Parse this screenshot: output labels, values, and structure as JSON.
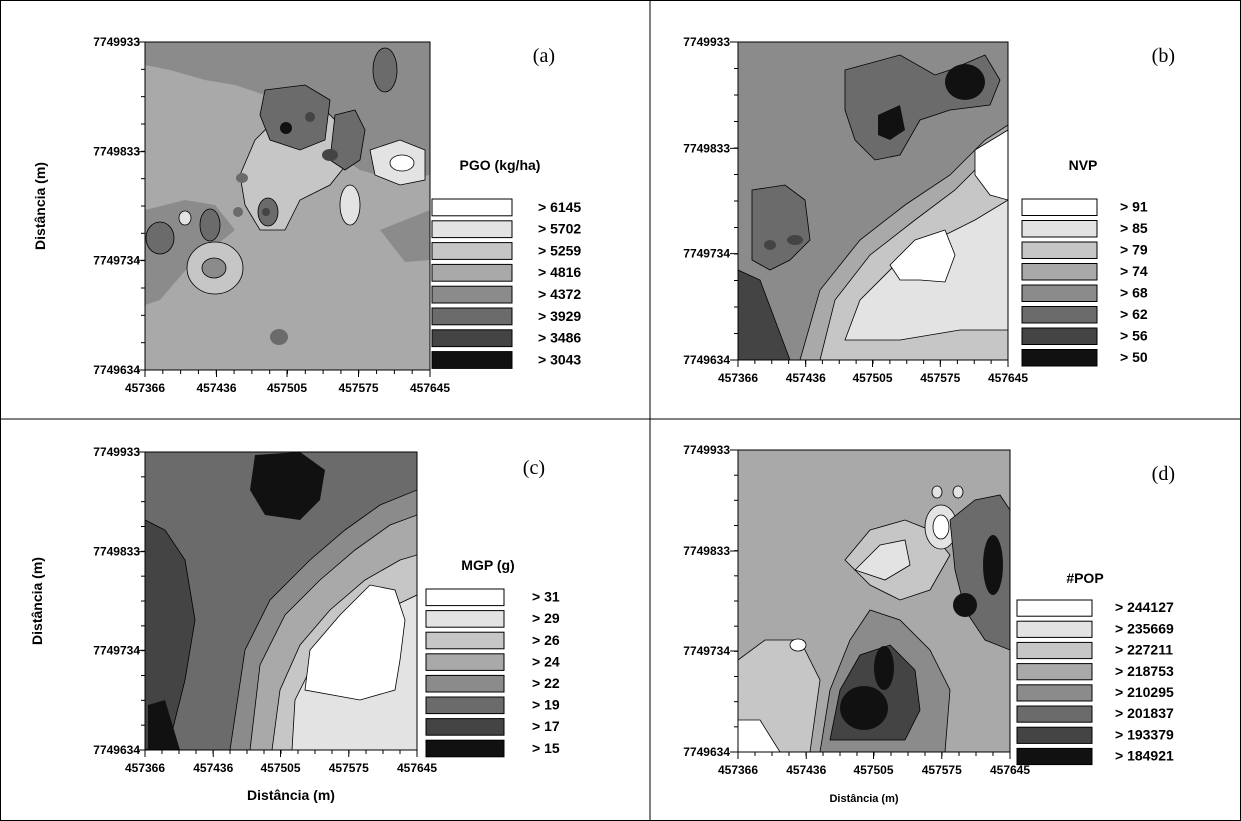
{
  "figure": {
    "panels": [
      {
        "label": "(a)",
        "legend_title": "PGO (kg/ha)",
        "y_ticks": [
          "7749933",
          "7749833",
          "7749734",
          "7749634"
        ],
        "x_ticks": [
          "457366",
          "457436",
          "457505",
          "457575",
          "457645"
        ],
        "ylabel": "Distância (m)",
        "xlabel": "",
        "legend_entries": [
          "> 6145",
          "> 5702",
          "> 5259",
          "> 4816",
          "> 4372",
          "> 3929",
          "> 3486",
          "> 3043"
        ]
      },
      {
        "label": "(b)",
        "legend_title": "NVP",
        "y_ticks": [
          "7749933",
          "7749833",
          "7749734",
          "7749634"
        ],
        "x_ticks": [
          "457366",
          "457436",
          "457505",
          "457575",
          "457645"
        ],
        "ylabel": "",
        "xlabel": "",
        "legend_entries": [
          "> 91",
          "> 85",
          "> 79",
          "> 74",
          "> 68",
          "> 62",
          "> 56",
          "> 50"
        ]
      },
      {
        "label": "(c)",
        "legend_title": "MGP (g)",
        "y_ticks": [
          "7749933",
          "7749833",
          "7749734",
          "7749634"
        ],
        "x_ticks": [
          "457366",
          "457436",
          "457505",
          "457575",
          "457645"
        ],
        "ylabel": "Distância (m)",
        "xlabel": "Distância (m)",
        "legend_entries": [
          "> 31",
          "> 29",
          "> 26",
          "> 24",
          "> 22",
          "> 19",
          "> 17",
          "> 15"
        ]
      },
      {
        "label": "(d)",
        "legend_title": "#POP",
        "y_ticks": [
          "7749933",
          "7749833",
          "7749734",
          "7749634"
        ],
        "x_ticks": [
          "457366",
          "457436",
          "457505",
          "457575",
          "457645"
        ],
        "ylabel": "",
        "xlabel": "Distância (m)",
        "legend_entries": [
          "> 244127",
          "> 235669",
          "> 227211",
          "> 218753",
          "> 210295",
          "> 201837",
          "> 193379",
          "> 184921"
        ]
      }
    ],
    "legend_colors": [
      "#ffffff",
      "#e3e3e3",
      "#c6c6c6",
      "#a9a9a9",
      "#8b8b8b",
      "#6b6b6b",
      "#444444",
      "#111111"
    ]
  },
  "chart_data": [
    {
      "type": "heatmap",
      "title": "PGO (kg/ha)",
      "xlabel": "",
      "ylabel": "Distância (m)",
      "xlim": [
        457366,
        457645
      ],
      "ylim": [
        7749634,
        7749933
      ],
      "x_ticks": [
        457366,
        457436,
        457505,
        457575,
        457645
      ],
      "y_ticks": [
        7749634,
        7749734,
        7749833,
        7749933
      ],
      "classes": [
        6145,
        5702,
        5259,
        4816,
        4372,
        3929,
        3486,
        3043
      ],
      "class_labels": [
        "> 6145",
        "> 5702",
        "> 5259",
        "> 4816",
        "> 4372",
        "> 3929",
        "> 3486",
        "> 3043"
      ],
      "colors": [
        "#ffffff",
        "#e3e3e3",
        "#c6c6c6",
        "#a9a9a9",
        "#8b8b8b",
        "#6b6b6b",
        "#444444",
        "#111111"
      ],
      "legend_position": "right"
    },
    {
      "type": "heatmap",
      "title": "NVP",
      "xlabel": "",
      "ylabel": "",
      "xlim": [
        457366,
        457645
      ],
      "ylim": [
        7749634,
        7749933
      ],
      "x_ticks": [
        457366,
        457436,
        457505,
        457575,
        457645
      ],
      "y_ticks": [
        7749634,
        7749734,
        7749833,
        7749933
      ],
      "classes": [
        91,
        85,
        79,
        74,
        68,
        62,
        56,
        50
      ],
      "class_labels": [
        "> 91",
        "> 85",
        "> 79",
        "> 74",
        "> 68",
        "> 62",
        "> 56",
        "> 50"
      ],
      "colors": [
        "#ffffff",
        "#e3e3e3",
        "#c6c6c6",
        "#a9a9a9",
        "#8b8b8b",
        "#6b6b6b",
        "#444444",
        "#111111"
      ],
      "legend_position": "right"
    },
    {
      "type": "heatmap",
      "title": "MGP (g)",
      "xlabel": "Distância (m)",
      "ylabel": "Distância (m)",
      "xlim": [
        457366,
        457645
      ],
      "ylim": [
        7749634,
        7749933
      ],
      "x_ticks": [
        457366,
        457436,
        457505,
        457575,
        457645
      ],
      "y_ticks": [
        7749634,
        7749734,
        7749833,
        7749933
      ],
      "classes": [
        31,
        29,
        26,
        24,
        22,
        19,
        17,
        15
      ],
      "class_labels": [
        "> 31",
        "> 29",
        "> 26",
        "> 24",
        "> 22",
        "> 19",
        "> 17",
        "> 15"
      ],
      "colors": [
        "#ffffff",
        "#e3e3e3",
        "#c6c6c6",
        "#a9a9a9",
        "#8b8b8b",
        "#6b6b6b",
        "#444444",
        "#111111"
      ],
      "legend_position": "right"
    },
    {
      "type": "heatmap",
      "title": "#POP",
      "xlabel": "Distância (m)",
      "ylabel": "",
      "xlim": [
        457366,
        457645
      ],
      "ylim": [
        7749634,
        7749933
      ],
      "x_ticks": [
        457366,
        457436,
        457505,
        457575,
        457645
      ],
      "y_ticks": [
        7749634,
        7749734,
        7749833,
        7749933
      ],
      "classes": [
        244127,
        235669,
        227211,
        218753,
        210295,
        201837,
        193379,
        184921
      ],
      "class_labels": [
        "> 244127",
        "> 235669",
        "> 227211",
        "> 218753",
        "> 210295",
        "> 201837",
        "> 193379",
        "> 184921"
      ],
      "colors": [
        "#ffffff",
        "#e3e3e3",
        "#c6c6c6",
        "#a9a9a9",
        "#8b8b8b",
        "#6b6b6b",
        "#444444",
        "#111111"
      ],
      "legend_position": "right"
    }
  ]
}
